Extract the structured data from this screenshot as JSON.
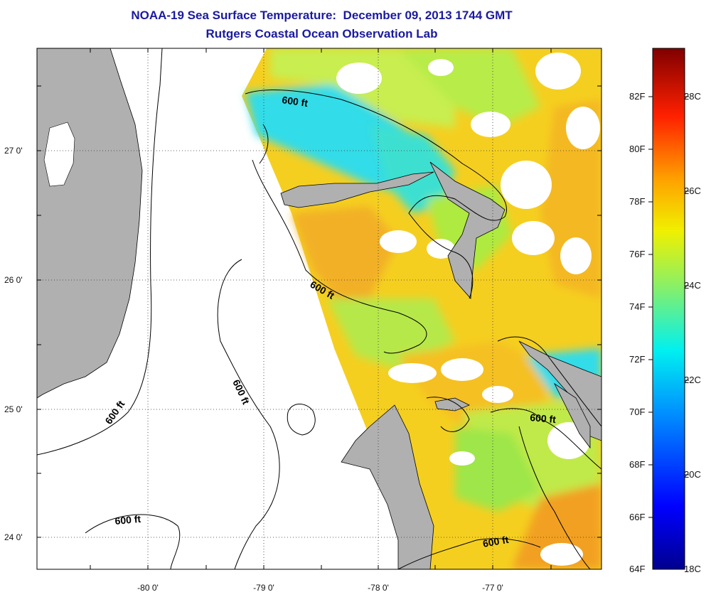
{
  "header": {
    "title": "NOAA-19 Sea Surface Temperature:  December 09, 2013 1744 GMT",
    "subtitle": "Rutgers Coastal Ocean Observation Lab"
  },
  "map": {
    "lat_ticks": [
      "27 0'",
      "26 0'",
      "25 0'",
      "24 0'"
    ],
    "lon_ticks": [
      "-80 0'",
      "-79 0'",
      "-78 0'",
      "-77 0'"
    ],
    "contour_labels": [
      "600 ft",
      "600 ft",
      "600 ft",
      "600 ft",
      "600 ft",
      "600 ft"
    ],
    "colors": {
      "land": "#b0b0b0",
      "warm": "#f5c518",
      "cool": "#2ad8e8",
      "mid": "#c8ee40",
      "orange": "#f2a020"
    }
  },
  "colorbar": {
    "fahrenheit_labels": [
      "82F",
      "80F",
      "78F",
      "76F",
      "74F",
      "72F",
      "70F",
      "68F",
      "66F",
      "64F"
    ],
    "celsius_labels": [
      "28C",
      "26C",
      "24C",
      "22C",
      "20C",
      "18C"
    ],
    "range_f": [
      64,
      84
    ]
  }
}
